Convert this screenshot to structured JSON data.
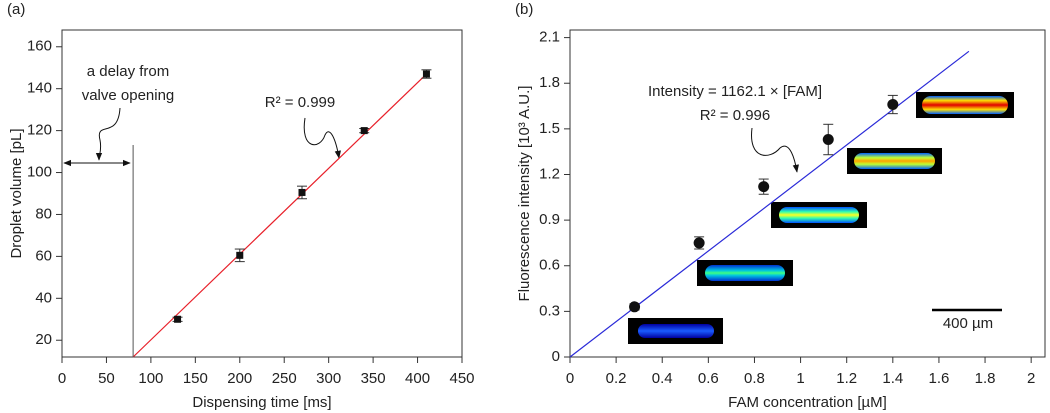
{
  "chart_data": [
    {
      "type": "scatter",
      "panel_label": "(a)",
      "xlabel": "Dispensing time [ms]",
      "ylabel": "Droplet volume [pL]",
      "xlim": [
        0,
        450
      ],
      "xticks": [
        0,
        50,
        100,
        150,
        200,
        250,
        300,
        350,
        400,
        450
      ],
      "ylim": [
        12,
        168
      ],
      "yticks": [
        20,
        40,
        60,
        80,
        100,
        120,
        140,
        160
      ],
      "marker": "square",
      "x": [
        130,
        200,
        270,
        340,
        410
      ],
      "series": [
        {
          "color": "#111111",
          "values": [
            30,
            60.5,
            90.5,
            120,
            147
          ],
          "errors": [
            1,
            3,
            3,
            1,
            2
          ]
        }
      ],
      "fit": {
        "color": "#e8202a",
        "x": [
          80,
          410
        ],
        "values": [
          12,
          147
        ]
      },
      "annotations": [
        "a delay from",
        "valve opening",
        "R² = 0.999"
      ]
    },
    {
      "type": "scatter",
      "panel_label": "(b)",
      "xlabel": "FAM concentration [µM]",
      "ylabel": "Fluorescence intensity [10³ A.U.]",
      "xlim": [
        0,
        2.06
      ],
      "xticks": [
        0,
        0.2,
        0.4,
        0.6,
        0.8,
        1,
        1.2,
        1.4,
        1.6,
        1.8,
        2
      ],
      "ylim": [
        0,
        2.15
      ],
      "yticks": [
        0,
        0.3,
        0.6,
        0.9,
        1.2,
        1.5,
        1.8,
        2.1
      ],
      "marker": "circle",
      "x": [
        0.28,
        0.56,
        0.84,
        1.12,
        1.4
      ],
      "series": [
        {
          "color": "#111111",
          "values": [
            0.33,
            0.75,
            1.12,
            1.43,
            1.66
          ],
          "errors": [
            0.02,
            0.04,
            0.05,
            0.1,
            0.06
          ]
        }
      ],
      "fit": {
        "color": "#2a2ad8",
        "x": [
          0,
          1.73
        ],
        "values": [
          0,
          2.01
        ]
      },
      "annotations": [
        "Intensity = 1162.1 × [FAM]",
        "R² = 0.996"
      ],
      "scale_bar": "400 µm"
    }
  ]
}
